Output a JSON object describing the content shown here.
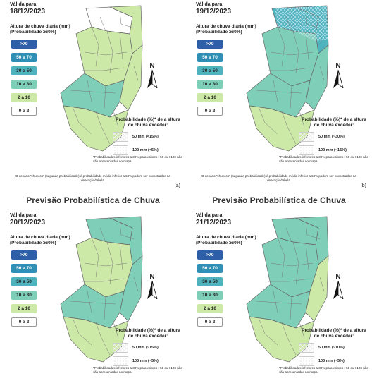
{
  "legend": {
    "title": "Altura de chuva diária (mm)\n(Probabilidade ≥60%)",
    "classes": [
      {
        "label": ">70",
        "color": "#2f5ea8",
        "text": "#ffffff"
      },
      {
        "label": "50 a 70",
        "color": "#2f8fb5",
        "text": "#ffffff"
      },
      {
        "label": "30 a 50",
        "color": "#4fb3be",
        "text": "#222222"
      },
      {
        "label": "10 a 30",
        "color": "#7fcfb8",
        "text": "#222222"
      },
      {
        "label": "2 a 10",
        "color": "#cde9a8",
        "text": "#222222"
      },
      {
        "label": "0 a 2",
        "color": "#ffffff",
        "text": "#222222"
      }
    ]
  },
  "valid_label": "Válida para:",
  "prob_title": "Probabilidade (%)* de a altura de chuva exceder:",
  "foot_note": "*Probabilidades inferiores a 30% para valores >50 ou >100 não são apresentadas no mapa.",
  "scenario_note": "O cenário \"chuvoso\" (segunda probabilidade) é probabilidade média inferior a 60% podem ser encontradas na descrição/tabela.",
  "north": "N",
  "panels": [
    {
      "title": "",
      "date": "18/12/2023",
      "p50": "50 mm (<15%)",
      "p100": "100 mm (<5%)",
      "letter": "(a)",
      "scenario": true,
      "fills": {
        "north": "#ffffff",
        "northeast": "#cde9a8",
        "center": "#cde9a8",
        "south": "#7fcfb8",
        "southwest": "#cde9a8",
        "coast": "#cde9a8"
      }
    },
    {
      "title": "",
      "date": "19/12/2023",
      "p50": "50 mm (~30%)",
      "p100": "100 mm (~15%)",
      "letter": "(b)",
      "scenario": true,
      "fills": {
        "north": "#4fb3be",
        "northeast": "#4fb3be",
        "center": "#7fcfb8",
        "south": "#7fcfb8",
        "southwest": "#cde9a8",
        "coast": "#7fcfb8"
      }
    },
    {
      "title": "Previsão Probabilística de Chuva",
      "date": "20/12/2023",
      "p50": "50 mm (~15%)",
      "p100": "100 mm (~5%)",
      "letter": "",
      "scenario": false,
      "fills": {
        "north": "#7fcfb8",
        "northeast": "#7fcfb8",
        "center": "#cde9a8",
        "south": "#7fcfb8",
        "southwest": "#cde9a8",
        "coast": "#7fcfb8"
      }
    },
    {
      "title": "Previsão Probabilística de Chuva",
      "date": "21/12/2023",
      "p50": "50 mm (~10%)",
      "p100": "100 mm (~5%)",
      "letter": "",
      "scenario": false,
      "fills": {
        "north": "#7fcfb8",
        "northeast": "#7fcfb8",
        "center": "#7fcfb8",
        "south": "#7fcfb8",
        "southwest": "#cde9a8",
        "coast": "#cde9a8"
      }
    }
  ]
}
